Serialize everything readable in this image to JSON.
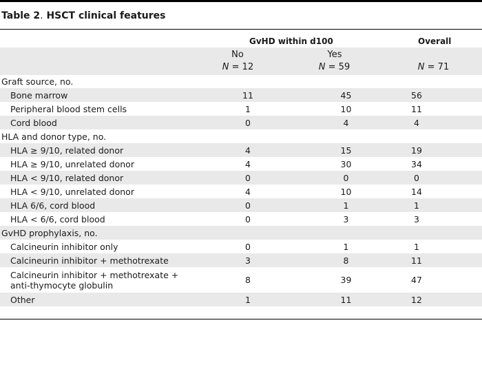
{
  "title": {
    "label": "Table 2",
    "separator": ".",
    "text": " HSCT clinical features"
  },
  "header": {
    "group_label": "GvHD within d100",
    "overall_label": "Overall",
    "columns": [
      {
        "name": "No",
        "n_label": "N",
        "n_value": " = 12"
      },
      {
        "name": "Yes",
        "n_label": "N",
        "n_value": " = 59"
      },
      {
        "name": "",
        "n_label": "N",
        "n_value": " = 71"
      }
    ]
  },
  "rows": [
    {
      "label": "Graft source, no.",
      "section": true,
      "no": "",
      "yes": "",
      "overall": ""
    },
    {
      "label": "Bone marrow",
      "no": "11",
      "yes": "45",
      "overall": "56"
    },
    {
      "label": "Peripheral blood stem cells",
      "no": "1",
      "yes": "10",
      "overall": "11"
    },
    {
      "label": "Cord blood",
      "no": "0",
      "yes": "4",
      "overall": "4"
    },
    {
      "label": "HLA and donor type, no.",
      "section": true,
      "no": "",
      "yes": "",
      "overall": ""
    },
    {
      "label": "HLA ≥ 9/10, related donor",
      "no": "4",
      "yes": "15",
      "overall": "19"
    },
    {
      "label": "HLA ≥ 9/10, unrelated donor",
      "no": "4",
      "yes": "30",
      "overall": "34"
    },
    {
      "label": "HLA < 9/10, related donor",
      "no": "0",
      "yes": "0",
      "overall": "0"
    },
    {
      "label": "HLA < 9/10, unrelated donor",
      "no": "4",
      "yes": "10",
      "overall": "14"
    },
    {
      "label": "HLA 6/6, cord blood",
      "no": "0",
      "yes": "1",
      "overall": "1"
    },
    {
      "label": "HLA < 6/6, cord blood",
      "no": "0",
      "yes": "3",
      "overall": "3"
    },
    {
      "label": "GvHD prophylaxis, no.",
      "section": true,
      "no": "",
      "yes": "",
      "overall": ""
    },
    {
      "label": "Calcineurin inhibitor only",
      "no": "0",
      "yes": "1",
      "overall": "1"
    },
    {
      "label": "Calcineurin inhibitor + methotrexate",
      "no": "3",
      "yes": "8",
      "overall": "11"
    },
    {
      "label": "Calcineurin inhibitor + methotrexate + anti-thymocyte globulin",
      "no": "8",
      "yes": "39",
      "overall": "47"
    },
    {
      "label": "Other",
      "no": "1",
      "yes": "11",
      "overall": "12"
    }
  ]
}
